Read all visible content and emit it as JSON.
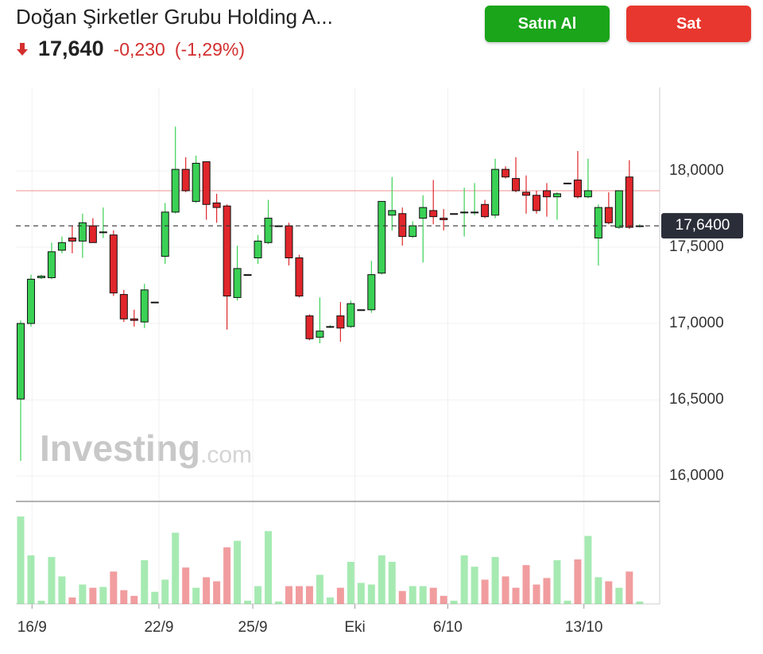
{
  "header": {
    "title": "Doğan Şirketler Grubu Holding A...",
    "price": "17,640",
    "change": "-0,230",
    "change_percent": "(-1,29%)",
    "buy_button": "Satın Al",
    "sell_button": "Sat"
  },
  "watermark": {
    "brand": "Investing",
    "suffix": ".com"
  },
  "chart_data": {
    "type": "candlestick",
    "up_color": "#3ad155",
    "down_color": "#e0262b",
    "open": [
      16.505,
      17.0,
      17.3,
      17.3,
      17.48,
      17.56,
      17.54,
      17.64,
      17.6,
      17.58,
      17.19,
      17.03,
      17.01,
      17.14,
      17.44,
      17.73,
      18.01,
      17.8,
      18.06,
      17.79,
      17.77,
      17.17,
      17.32,
      17.43,
      17.53,
      17.64,
      17.64,
      17.43,
      17.05,
      16.91,
      16.98,
      17.05,
      16.98,
      17.09,
      17.09,
      17.33,
      17.71,
      17.72,
      17.57,
      17.69,
      17.74,
      17.69,
      17.72,
      17.73,
      17.73,
      17.78,
      17.71,
      18.01,
      17.95,
      17.86,
      17.84,
      17.87,
      17.83,
      17.92,
      17.94,
      17.83,
      17.56,
      17.76,
      17.63,
      17.96,
      17.64
    ],
    "high": [
      17.02,
      17.32,
      17.32,
      17.53,
      17.57,
      17.64,
      17.72,
      17.69,
      17.76,
      17.61,
      17.22,
      17.09,
      17.26,
      17.14,
      17.79,
      18.29,
      18.09,
      18.1,
      18.06,
      17.85,
      17.78,
      17.51,
      17.32,
      17.58,
      17.81,
      17.64,
      17.66,
      17.45,
      17.06,
      17.17,
      16.99,
      17.14,
      17.15,
      17.09,
      17.41,
      17.8,
      17.96,
      17.76,
      17.67,
      17.84,
      17.94,
      17.75,
      17.72,
      17.89,
      17.92,
      17.81,
      18.08,
      18.03,
      18.09,
      17.97,
      17.87,
      17.92,
      17.86,
      17.92,
      18.13,
      18.08,
      17.78,
      17.86,
      17.87,
      18.07,
      17.65
    ],
    "low": [
      16.1,
      16.98,
      17.29,
      17.29,
      17.46,
      17.46,
      17.43,
      17.53,
      17.56,
      17.18,
      17.01,
      16.98,
      16.97,
      17.14,
      17.39,
      17.72,
      17.86,
      17.79,
      17.68,
      17.66,
      16.96,
      17.15,
      17.32,
      17.39,
      17.52,
      17.64,
      17.38,
      17.17,
      16.89,
      16.87,
      16.97,
      16.88,
      16.97,
      17.09,
      17.07,
      17.32,
      17.61,
      17.51,
      17.56,
      17.4,
      17.65,
      17.61,
      17.72,
      17.57,
      17.71,
      17.69,
      17.69,
      17.95,
      17.86,
      17.72,
      17.72,
      17.7,
      17.68,
      17.92,
      17.82,
      17.82,
      17.38,
      17.65,
      17.62,
      17.62,
      17.63
    ],
    "close": [
      17.0,
      17.29,
      17.31,
      17.47,
      17.53,
      17.54,
      17.66,
      17.53,
      17.6,
      17.2,
      17.03,
      17.02,
      17.22,
      17.14,
      17.73,
      18.01,
      17.87,
      18.05,
      17.78,
      17.76,
      17.18,
      17.36,
      17.32,
      17.54,
      17.69,
      17.64,
      17.43,
      17.18,
      16.9,
      16.95,
      16.98,
      16.97,
      17.13,
      17.09,
      17.32,
      17.8,
      17.74,
      17.57,
      17.64,
      17.76,
      17.7,
      17.68,
      17.72,
      17.73,
      17.73,
      17.7,
      18.01,
      17.96,
      17.87,
      17.84,
      17.74,
      17.83,
      17.85,
      17.92,
      17.83,
      17.87,
      17.76,
      17.66,
      17.87,
      17.63,
      17.64
    ],
    "volume": [
      108,
      60,
      4,
      58,
      34,
      8,
      24,
      20,
      21,
      40,
      17,
      10,
      54,
      15,
      30,
      88,
      45,
      20,
      33,
      28,
      70,
      78,
      4,
      22,
      90,
      3,
      22,
      22,
      22,
      36,
      8,
      20,
      52,
      26,
      24,
      60,
      52,
      16,
      22,
      22,
      20,
      10,
      4,
      60,
      46,
      30,
      58,
      34,
      20,
      48,
      24,
      32,
      54,
      4,
      55,
      84,
      33,
      28,
      20,
      40,
      3
    ],
    "ylim": [
      15.839,
      18.547
    ],
    "yticks": [
      {
        "value": 16,
        "label": "16,0000"
      },
      {
        "value": 16.5,
        "label": "16,5000"
      },
      {
        "value": 17,
        "label": "17,0000"
      },
      {
        "value": 17.5,
        "label": "17,5000"
      },
      {
        "value": 18,
        "label": "18,0000"
      }
    ],
    "xticks": [
      {
        "value": 1.1,
        "label": "16/9"
      },
      {
        "value": 13.4,
        "label": "22/9"
      },
      {
        "value": 22.5,
        "label": "25/9"
      },
      {
        "value": 32.4,
        "label": "Eki"
      },
      {
        "value": 41.4,
        "label": "6/10"
      },
      {
        "value": 54.6,
        "label": "13/10"
      }
    ],
    "last_price": {
      "value": 17.64,
      "label": "17,6400"
    },
    "previous_close": 17.87,
    "grid": true
  }
}
